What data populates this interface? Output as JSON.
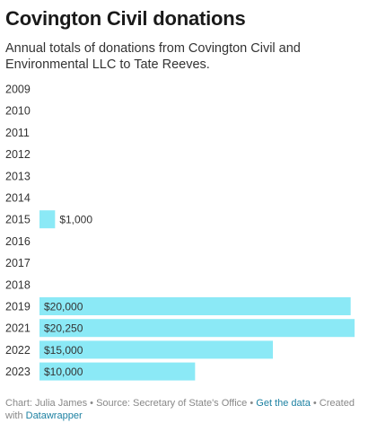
{
  "title": "Covington Civil donations",
  "subtitle": "Annual totals of donations from Covington Civil and Environmental LLC to Tate Reeves.",
  "footer": {
    "credit": "Chart: Julia James",
    "separator": "•",
    "source": "Source: Secretary of State's Office",
    "data_link": "Get the data",
    "created_prefix": "Created with",
    "tool_link": "Datawrapper"
  },
  "colors": {
    "bar": "#8be9f6",
    "text": "#333333",
    "link": "#1d81a2",
    "footer": "#888888"
  },
  "chart_data": {
    "type": "bar",
    "orientation": "horizontal",
    "categories": [
      "2009",
      "2010",
      "2011",
      "2012",
      "2013",
      "2014",
      "2015",
      "2016",
      "2017",
      "2018",
      "2019",
      "2021",
      "2022",
      "2023"
    ],
    "values": [
      null,
      null,
      null,
      null,
      null,
      null,
      1000,
      null,
      null,
      null,
      20000,
      20250,
      15000,
      10000
    ],
    "value_labels": [
      "",
      "",
      "",
      "",
      "",
      "",
      "$1,000",
      "",
      "",
      "",
      "$20,000",
      "$20,250",
      "$15,000",
      "$10,000"
    ],
    "xlim": [
      0,
      20250
    ],
    "grid": false,
    "legend": "none"
  }
}
